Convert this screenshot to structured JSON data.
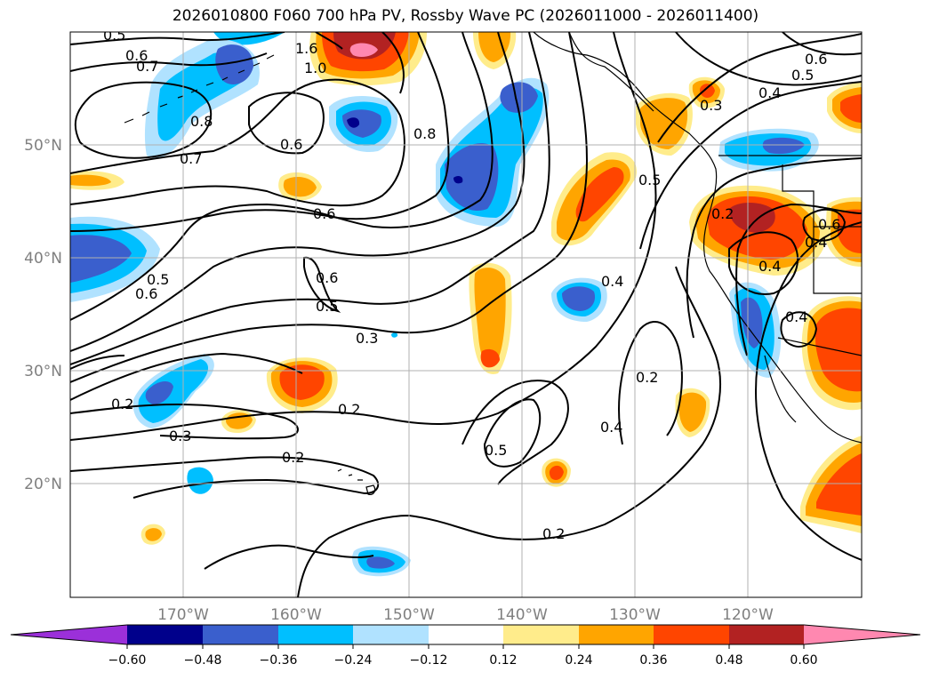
{
  "title": "2026010800 F060 700 hPa PV, Rossby Wave PC (2026011000 - 2026011400)",
  "lat_labels": [
    "50°N",
    "40°N",
    "30°N",
    "20°N"
  ],
  "lon_labels": [
    "170°W",
    "160°W",
    "150°W",
    "140°W",
    "130°W",
    "120°W"
  ],
  "contour_labels": [
    "0.5",
    "0.6",
    "0.7",
    "1.0",
    "1.6",
    "0.8",
    "0.7",
    "0.6",
    "0.6",
    "0.5",
    "0.6",
    "0.6",
    "0.5",
    "0.3",
    "0.2",
    "0.3",
    "0.2",
    "0.2",
    "0.5",
    "0.4",
    "0.2",
    "0.4",
    "0.5",
    "0.4",
    "0.3",
    "0.6",
    "0.5",
    "0.4",
    "0.2",
    "0.6",
    "0.4",
    "0.4",
    "0.8",
    "0.2"
  ],
  "colorbar": {
    "ticks": [
      "−0.60",
      "−0.48",
      "−0.36",
      "−0.24",
      "−0.12",
      "0.12",
      "0.24",
      "0.36",
      "0.48",
      "0.60"
    ],
    "colors": [
      "#9b30d9",
      "#00008b",
      "#3a5fcd",
      "#00bfff",
      "#b0e2ff",
      "#ffffff",
      "#ffec8b",
      "#ffa500",
      "#ff4500",
      "#b22222",
      "#ff88b0"
    ]
  },
  "fill_colors": {
    "neg_1": "#b0e2ff",
    "neg_2": "#00bfff",
    "neg_3": "#3a5fcd",
    "neg_4": "#00008b",
    "pos_1": "#ffec8b",
    "pos_2": "#ffa500",
    "pos_3": "#ff4500",
    "pos_4": "#b22222",
    "pos_5": "#ff88b0"
  }
}
